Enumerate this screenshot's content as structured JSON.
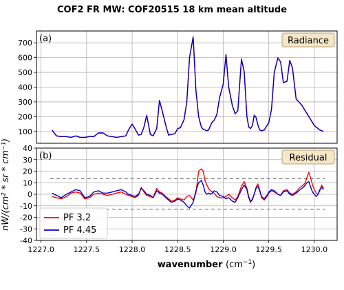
{
  "chart_data": {
    "title": "COF2 FR MW: COF20515  18 km mean altitude",
    "xlabel_main": "wavenumber ",
    "xlabel_unit": "(cm",
    "xlabel_exp": "−1",
    "xlabel_close": ")",
    "ylabel": "nW/(cm² * sr * cm⁻¹)",
    "x_ticks": [
      1227.0,
      1227.5,
      1228.0,
      1228.5,
      1229.0,
      1229.5,
      1230.0
    ],
    "x_tick_labels": [
      "1227.0",
      "1227.5",
      "1228.0",
      "1228.5",
      "1229.0",
      "1229.5",
      "1230.0"
    ],
    "xlim": [
      1226.95,
      1230.25
    ],
    "grid": true,
    "colors": {
      "pf32": "#ff0000",
      "pf445": "#0000cc",
      "threshold": "#7f7f7f",
      "tag_bg": "#f5e6c8",
      "tag_border": "#b8a37a"
    },
    "panels": [
      {
        "id": "radiance",
        "type": "line",
        "letter": "(a)",
        "tag": "Radiance",
        "ylim": [
          20,
          780
        ],
        "y_ticks": [
          100,
          200,
          300,
          400,
          500,
          600,
          700
        ],
        "series": [
          {
            "name": "PF 3.2",
            "color": "#ff0000",
            "x": [
              1227.12,
              1227.17,
              1227.22,
              1227.28,
              1227.33,
              1227.38,
              1227.43,
              1227.48,
              1227.53,
              1227.58,
              1227.63,
              1227.68,
              1227.73,
              1227.78,
              1227.83,
              1227.88,
              1227.93,
              1227.96,
              1228.0,
              1228.03,
              1228.07,
              1228.1,
              1228.13,
              1228.16,
              1228.2,
              1228.23,
              1228.27,
              1228.3,
              1228.33,
              1228.37,
              1228.4,
              1228.43,
              1228.47,
              1228.5,
              1228.53,
              1228.57,
              1228.6,
              1228.63,
              1228.67,
              1228.7,
              1228.73,
              1228.76,
              1228.78,
              1228.8,
              1228.82,
              1228.84,
              1228.86,
              1228.88,
              1228.9,
              1228.93,
              1228.96,
              1229.0,
              1229.03,
              1229.06,
              1229.1,
              1229.13,
              1229.16,
              1229.2,
              1229.23,
              1229.26,
              1229.28,
              1229.3,
              1229.32,
              1229.34,
              1229.36,
              1229.38,
              1229.4,
              1229.42,
              1229.45,
              1229.48,
              1229.5,
              1229.53,
              1229.56,
              1229.6,
              1229.63,
              1229.66,
              1229.7,
              1229.73,
              1229.76,
              1229.8,
              1229.83,
              1229.86,
              1229.88,
              1229.9,
              1229.92,
              1229.94,
              1229.96,
              1229.98,
              1230.0,
              1230.02,
              1230.04,
              1230.06,
              1230.08,
              1230.1
            ],
            "values": [
              110,
              70,
              65,
              65,
              60,
              70,
              60,
              60,
              65,
              65,
              90,
              90,
              70,
              65,
              60,
              65,
              70,
              110,
              150,
              120,
              75,
              80,
              130,
              210,
              80,
              70,
              120,
              310,
              240,
              140,
              75,
              80,
              85,
              120,
              125,
              180,
              300,
              600,
              740,
              380,
              200,
              130,
              115,
              110,
              105,
              110,
              140,
              165,
              175,
              215,
              330,
              420,
              620,
              400,
              275,
              220,
              240,
              590,
              505,
              200,
              130,
              120,
              140,
              210,
              195,
              145,
              110,
              105,
              110,
              140,
              160,
              250,
              500,
              598,
              570,
              430,
              440,
              580,
              530,
              320,
              300,
              280,
              260,
              240,
              220,
              200,
              180,
              160,
              140,
              130,
              120,
              110,
              105,
              100
            ]
          },
          {
            "name": "PF 4.45",
            "color": "#0000cc",
            "x": [
              1227.12,
              1227.17,
              1227.22,
              1227.28,
              1227.33,
              1227.38,
              1227.43,
              1227.48,
              1227.53,
              1227.58,
              1227.63,
              1227.68,
              1227.73,
              1227.78,
              1227.83,
              1227.88,
              1227.93,
              1227.96,
              1228.0,
              1228.03,
              1228.07,
              1228.1,
              1228.13,
              1228.16,
              1228.2,
              1228.23,
              1228.27,
              1228.3,
              1228.33,
              1228.37,
              1228.4,
              1228.43,
              1228.47,
              1228.5,
              1228.53,
              1228.57,
              1228.6,
              1228.63,
              1228.67,
              1228.7,
              1228.73,
              1228.76,
              1228.78,
              1228.8,
              1228.82,
              1228.84,
              1228.86,
              1228.88,
              1228.9,
              1228.93,
              1228.96,
              1229.0,
              1229.03,
              1229.06,
              1229.1,
              1229.13,
              1229.16,
              1229.2,
              1229.23,
              1229.26,
              1229.28,
              1229.3,
              1229.32,
              1229.34,
              1229.36,
              1229.38,
              1229.4,
              1229.42,
              1229.45,
              1229.48,
              1229.5,
              1229.53,
              1229.56,
              1229.6,
              1229.63,
              1229.66,
              1229.7,
              1229.73,
              1229.76,
              1229.8,
              1229.83,
              1229.86,
              1229.88,
              1229.9,
              1229.92,
              1229.94,
              1229.96,
              1229.98,
              1230.0,
              1230.02,
              1230.04,
              1230.06,
              1230.08,
              1230.1
            ],
            "values": [
              110,
              70,
              65,
              65,
              60,
              70,
              60,
              60,
              65,
              65,
              90,
              90,
              70,
              65,
              60,
              65,
              70,
              110,
              150,
              120,
              75,
              80,
              130,
              210,
              80,
              70,
              120,
              310,
              240,
              140,
              75,
              80,
              85,
              120,
              125,
              180,
              300,
              600,
              740,
              380,
              200,
              130,
              115,
              110,
              105,
              110,
              140,
              165,
              175,
              215,
              330,
              420,
              620,
              400,
              275,
              220,
              240,
              590,
              505,
              200,
              130,
              120,
              140,
              210,
              195,
              145,
              110,
              105,
              110,
              140,
              160,
              250,
              500,
              598,
              570,
              430,
              440,
              580,
              530,
              320,
              300,
              280,
              260,
              240,
              220,
              200,
              180,
              160,
              140,
              130,
              120,
              110,
              105,
              100
            ]
          }
        ]
      },
      {
        "id": "residual",
        "type": "line",
        "letter": "(b)",
        "tag": "Residual",
        "ylim": [
          -40,
          40
        ],
        "y_ticks": [
          -40,
          -30,
          -20,
          -10,
          0,
          10,
          20,
          30,
          40
        ],
        "thresholds": [
          13.5,
          -13
        ],
        "series": [
          {
            "name": "PF 3.2",
            "color": "#ff0000",
            "x": [
              1227.12,
              1227.17,
              1227.22,
              1227.28,
              1227.33,
              1227.38,
              1227.43,
              1227.48,
              1227.53,
              1227.58,
              1227.63,
              1227.68,
              1227.73,
              1227.78,
              1227.83,
              1227.88,
              1227.93,
              1227.96,
              1228.0,
              1228.03,
              1228.07,
              1228.1,
              1228.13,
              1228.16,
              1228.2,
              1228.23,
              1228.27,
              1228.3,
              1228.33,
              1228.37,
              1228.4,
              1228.43,
              1228.47,
              1228.5,
              1228.53,
              1228.57,
              1228.6,
              1228.63,
              1228.67,
              1228.7,
              1228.73,
              1228.76,
              1228.78,
              1228.8,
              1228.82,
              1228.84,
              1228.86,
              1228.88,
              1228.9,
              1228.93,
              1228.96,
              1229.0,
              1229.03,
              1229.06,
              1229.1,
              1229.13,
              1229.16,
              1229.2,
              1229.23,
              1229.26,
              1229.28,
              1229.3,
              1229.32,
              1229.34,
              1229.36,
              1229.38,
              1229.4,
              1229.42,
              1229.45,
              1229.48,
              1229.5,
              1229.53,
              1229.56,
              1229.6,
              1229.63,
              1229.66,
              1229.7,
              1229.73,
              1229.76,
              1229.8,
              1229.83,
              1229.86,
              1229.88,
              1229.9,
              1229.92,
              1229.94,
              1229.96,
              1229.98,
              1230.0,
              1230.02,
              1230.04,
              1230.06,
              1230.08,
              1230.1
            ],
            "values": [
              -2,
              -3,
              -4,
              -2,
              1,
              2,
              1,
              -4,
              -3,
              0,
              1,
              0,
              -1,
              0,
              1,
              2,
              0,
              -1,
              -2,
              -3,
              -1,
              6,
              2,
              -1,
              -2,
              -3,
              5,
              2,
              1,
              -2,
              -4,
              -6,
              -5,
              -3,
              -4,
              -5,
              -2,
              -1,
              -5,
              1,
              20,
              22,
              20,
              12,
              8,
              5,
              3,
              2,
              1,
              -2,
              -3,
              -3,
              -2,
              0,
              -3,
              -5,
              -2,
              7,
              11,
              5,
              -2,
              -6,
              -5,
              0,
              6,
              9,
              4,
              -3,
              -5,
              -2,
              1,
              3,
              2,
              0,
              -1,
              3,
              4,
              1,
              0,
              2,
              5,
              7,
              8,
              10,
              15,
              19,
              14,
              8,
              4,
              1,
              0,
              3,
              8,
              5
            ]
          },
          {
            "name": "PF 4.45",
            "color": "#0000cc",
            "x": [
              1227.12,
              1227.17,
              1227.22,
              1227.28,
              1227.33,
              1227.38,
              1227.43,
              1227.48,
              1227.53,
              1227.58,
              1227.63,
              1227.68,
              1227.73,
              1227.78,
              1227.83,
              1227.88,
              1227.93,
              1227.96,
              1228.0,
              1228.03,
              1228.07,
              1228.1,
              1228.13,
              1228.16,
              1228.2,
              1228.23,
              1228.27,
              1228.3,
              1228.33,
              1228.37,
              1228.4,
              1228.43,
              1228.47,
              1228.5,
              1228.53,
              1228.57,
              1228.6,
              1228.63,
              1228.67,
              1228.7,
              1228.73,
              1228.76,
              1228.78,
              1228.8,
              1228.82,
              1228.84,
              1228.86,
              1228.88,
              1228.9,
              1228.93,
              1228.96,
              1229.0,
              1229.03,
              1229.06,
              1229.1,
              1229.13,
              1229.16,
              1229.2,
              1229.23,
              1229.26,
              1229.28,
              1229.3,
              1229.32,
              1229.34,
              1229.36,
              1229.38,
              1229.4,
              1229.42,
              1229.45,
              1229.48,
              1229.5,
              1229.53,
              1229.56,
              1229.6,
              1229.63,
              1229.66,
              1229.7,
              1229.73,
              1229.76,
              1229.8,
              1229.83,
              1229.86,
              1229.88,
              1229.9,
              1229.92,
              1229.94,
              1229.96,
              1229.98,
              1230.0,
              1230.02,
              1230.04,
              1230.06,
              1230.08,
              1230.1
            ],
            "values": [
              1,
              -1,
              -3,
              0,
              2,
              4,
              3,
              -3,
              -2,
              2,
              3,
              1,
              1,
              2,
              3,
              4,
              2,
              0,
              -1,
              -2,
              0,
              5,
              3,
              0,
              -1,
              -3,
              3,
              1,
              0,
              -3,
              -5,
              -7,
              -6,
              -4,
              -5,
              -7,
              -10,
              -12,
              -7,
              3,
              10,
              12,
              8,
              2,
              0,
              1,
              0,
              1,
              3,
              2,
              -1,
              -2,
              -4,
              -3,
              -6,
              -7,
              -3,
              4,
              8,
              4,
              -3,
              -7,
              -4,
              0,
              5,
              7,
              3,
              -2,
              -4,
              -1,
              2,
              4,
              3,
              0,
              -1,
              2,
              3,
              0,
              -1,
              1,
              3,
              5,
              6,
              8,
              10,
              11,
              6,
              2,
              0,
              -2,
              0,
              4,
              6,
              4
            ]
          }
        ]
      }
    ],
    "legend": {
      "position": "lower-left",
      "entries": [
        {
          "label": "PF 3.2",
          "color": "#ff0000"
        },
        {
          "label": "PF 4.45",
          "color": "#0000cc"
        }
      ]
    }
  }
}
